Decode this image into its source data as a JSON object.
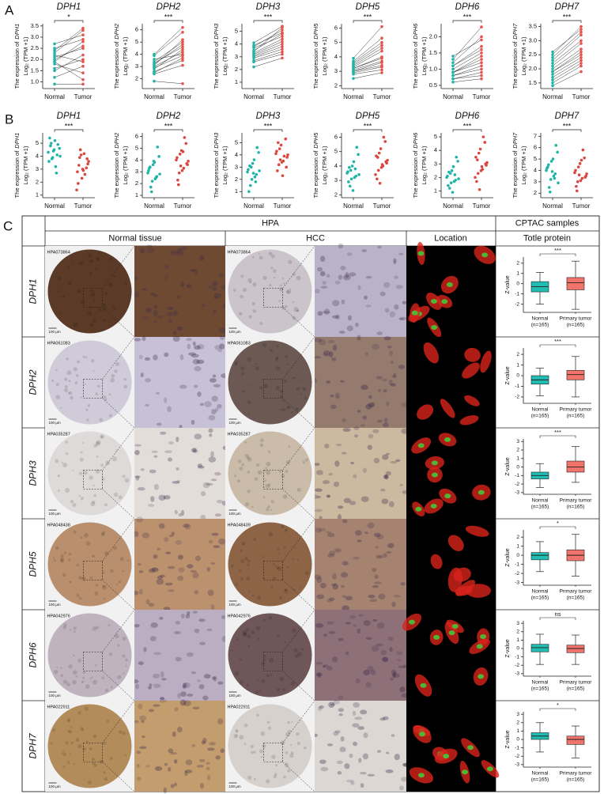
{
  "panel_a": {
    "label": "A",
    "normal_label": "Normal",
    "tumor_label": "Tumor",
    "ylabel_prefix": "The expression of",
    "ylabel_unit": "Log₂ (TPM +1)",
    "colors": {
      "normal": "#1fb5a6",
      "tumor": "#e8524a"
    },
    "plots": [
      {
        "gene": "DPH1",
        "sig": "*",
        "ylim": [
          0.7,
          3.6
        ],
        "yticks": [
          {
            "value": 1,
            "label": "1.0"
          },
          1.5,
          {
            "value": 2,
            "label": "2.0"
          },
          2.5,
          {
            "value": 3,
            "label": "3.0"
          },
          3.5
        ],
        "normal": [
          2.0,
          1.8,
          2.3,
          1.6,
          2.5,
          1.9,
          2.1,
          1.2,
          2.7,
          1.5,
          2.2,
          0.9,
          1.9,
          2.4
        ],
        "tumor": [
          2.6,
          1.4,
          3.3,
          2.0,
          2.9,
          1.1,
          2.5,
          1.7,
          3.1,
          2.2,
          1.9,
          0.9,
          2.8,
          3.4
        ]
      },
      {
        "gene": "DPH2",
        "sig": "***",
        "ylim": [
          1.2,
          6.5
        ],
        "yticks": [
          2,
          3,
          4,
          5,
          6
        ],
        "normal": [
          3.0,
          2.6,
          3.4,
          2.4,
          3.9,
          2.8,
          3.2,
          1.8,
          3.6,
          2.9,
          3.1,
          2.5,
          4.0,
          3.3
        ],
        "tumor": [
          4.2,
          3.5,
          5.0,
          3.1,
          5.8,
          4.4,
          4.8,
          1.6,
          4.0,
          3.9,
          5.2,
          3.7,
          6.2,
          4.6
        ]
      },
      {
        "gene": "DPH3",
        "sig": "***",
        "ylim": [
          0.5,
          5.6
        ],
        "yticks": [
          1,
          2,
          3,
          4,
          5
        ],
        "normal": [
          3.3,
          2.9,
          3.8,
          2.6,
          4.1,
          3.1,
          3.5,
          2.2,
          3.7,
          3.0,
          3.4,
          2.7,
          3.9,
          3.2
        ],
        "tumor": [
          4.4,
          3.6,
          5.1,
          3.2,
          5.4,
          4.0,
          4.8,
          2.9,
          4.6,
          3.8,
          5.3,
          3.4,
          4.9,
          4.2
        ]
      },
      {
        "gene": "DPH5",
        "sig": "***",
        "ylim": [
          1.8,
          6.3
        ],
        "yticks": [
          2,
          3,
          4,
          5,
          6
        ],
        "normal": [
          3.2,
          3.0,
          3.5,
          2.8,
          3.7,
          3.1,
          3.3,
          2.5,
          3.9,
          3.0,
          3.4,
          2.9,
          3.6,
          3.2
        ],
        "tumor": [
          4.0,
          3.4,
          4.8,
          3.1,
          5.3,
          3.7,
          4.4,
          2.9,
          6.1,
          3.6,
          4.6,
          3.3,
          5.0,
          3.9
        ]
      },
      {
        "gene": "DPH6",
        "sig": "***",
        "ylim": [
          0.4,
          2.4
        ],
        "yticks": [
          0.5,
          {
            "value": 1,
            "label": "1.0"
          },
          1.5,
          {
            "value": 2,
            "label": "2.0"
          }
        ],
        "normal": [
          0.9,
          0.8,
          1.1,
          0.7,
          1.3,
          0.9,
          1.0,
          0.6,
          1.4,
          0.8,
          1.1,
          0.7,
          1.2,
          0.9
        ],
        "tumor": [
          1.3,
          1.0,
          1.7,
          0.9,
          2.3,
          1.2,
          1.5,
          0.7,
          1.9,
          1.1,
          1.6,
          0.8,
          2.0,
          1.4
        ]
      },
      {
        "gene": "DPH7",
        "sig": "***",
        "ylim": [
          1.3,
          3.6
        ],
        "yticks": [
          1.5,
          {
            "value": 2,
            "label": "2.0"
          },
          2.5,
          {
            "value": 3,
            "label": "3.0"
          },
          3.5
        ],
        "normal": [
          2.0,
          1.7,
          2.3,
          1.5,
          2.6,
          1.9,
          2.1,
          1.4,
          2.5,
          1.8,
          2.2,
          1.6,
          2.4,
          1.9
        ],
        "tumor": [
          2.7,
          2.3,
          3.2,
          2.1,
          3.4,
          2.5,
          2.9,
          1.9,
          3.5,
          2.4,
          3.0,
          2.2,
          3.3,
          2.6
        ]
      }
    ]
  },
  "panel_b": {
    "label": "B",
    "normal_label": "Normal",
    "tumor_label": "Tumor",
    "ylabel_prefix": "The expression of",
    "ylabel_unit": "Log₂ (TPM +1)",
    "colors": {
      "normal": "#1fb5a6",
      "tumor": "#d9473f"
    },
    "plots": [
      {
        "gene": "DPH1",
        "sig": "***",
        "ylim": [
          0.8,
          5.8
        ],
        "yticks": [
          1,
          2,
          3,
          4,
          5
        ],
        "normal": [
          4.3,
          4.8,
          3.9,
          5.2,
          4.1,
          4.6,
          3.6,
          5.0,
          4.4,
          3.2,
          4.9,
          4.0,
          5.4,
          3.8,
          4.5,
          2.7
        ],
        "tumor": [
          3.4,
          2.8,
          3.9,
          2.3,
          4.2,
          3.1,
          3.6,
          1.9,
          4.5,
          3.0,
          2.6,
          3.8,
          1.4,
          3.3,
          4.1,
          2.9
        ]
      },
      {
        "gene": "DPH2",
        "sig": "***",
        "ylim": [
          0.8,
          6.3
        ],
        "yticks": [
          1,
          2,
          3,
          4,
          5,
          6
        ],
        "normal": [
          2.9,
          3.4,
          2.2,
          3.8,
          2.6,
          4.3,
          3.1,
          1.7,
          3.6,
          2.4,
          5.1,
          2.8,
          3.3,
          1.3,
          3.9,
          2.5
        ],
        "tumor": [
          3.6,
          4.2,
          2.9,
          4.8,
          3.3,
          5.4,
          3.9,
          2.3,
          4.5,
          3.1,
          5.9,
          3.7,
          4.0,
          1.9,
          3.5,
          4.7
        ]
      },
      {
        "gene": "DPH3",
        "sig": "***",
        "ylim": [
          0.5,
          5.8
        ],
        "yticks": [
          1,
          2,
          3,
          4,
          5
        ],
        "normal": [
          2.6,
          3.1,
          2.0,
          3.6,
          2.4,
          4.2,
          2.8,
          1.5,
          3.3,
          2.2,
          4.6,
          2.7,
          1.0,
          3.0,
          2.5,
          1.8
        ],
        "tumor": [
          3.8,
          4.3,
          3.2,
          4.8,
          3.5,
          5.3,
          4.0,
          2.7,
          4.5,
          3.4,
          3.9,
          3.0,
          4.1,
          5.0,
          3.6,
          2.3
        ]
      },
      {
        "gene": "DPH5",
        "sig": "***",
        "ylim": [
          1.8,
          6.3
        ],
        "yticks": [
          2,
          3,
          4,
          5,
          6
        ],
        "normal": [
          3.5,
          3.9,
          3.1,
          4.3,
          3.3,
          4.8,
          3.6,
          2.6,
          4.0,
          3.2,
          5.3,
          3.4,
          2.9,
          3.7,
          2.3,
          3.8
        ],
        "tumor": [
          4.2,
          4.7,
          3.7,
          5.2,
          4.0,
          5.7,
          4.4,
          3.1,
          4.9,
          3.9,
          6.0,
          4.3,
          3.4,
          4.6,
          2.8,
          4.1
        ]
      },
      {
        "gene": "DPH6",
        "sig": "***",
        "ylim": [
          0.5,
          5.3
        ],
        "yticks": [
          1,
          2,
          3,
          4,
          5
        ],
        "normal": [
          2.0,
          2.4,
          1.6,
          2.8,
          1.8,
          3.2,
          2.1,
          1.2,
          2.5,
          1.7,
          3.5,
          1.9,
          1.4,
          2.3,
          0.9,
          2.2
        ],
        "tumor": [
          2.9,
          3.5,
          2.3,
          4.1,
          2.6,
          4.6,
          3.1,
          1.7,
          3.8,
          2.5,
          5.0,
          3.0,
          2.0,
          3.3,
          1.1,
          2.8
        ]
      },
      {
        "gene": "DPH7",
        "sig": "***",
        "ylim": [
          1.6,
          7.3
        ],
        "yticks": [
          2,
          3,
          4,
          5,
          6,
          7
        ],
        "normal": [
          4.0,
          4.5,
          3.2,
          5.0,
          3.7,
          5.6,
          4.2,
          2.5,
          4.8,
          3.5,
          6.2,
          2.9,
          4.3,
          2.1,
          3.9,
          3.3
        ],
        "tumor": [
          3.5,
          4.0,
          3.0,
          4.6,
          3.3,
          5.1,
          3.7,
          2.6,
          4.3,
          3.1,
          5.8,
          3.4,
          3.8,
          2.2,
          3.6,
          4.9
        ]
      }
    ]
  },
  "panel_c": {
    "label": "C",
    "header": {
      "hpa": "HPA",
      "cptac": "CPTAC samples",
      "normal_tissue": "Normal tissue",
      "hcc": "HCC",
      "location": "Location",
      "total_protein": "Totle protein"
    },
    "scale_bar": "100 µm",
    "box_ylabel": "Z-value",
    "box_xlabels": {
      "normal": [
        "Normal",
        "(n=165)"
      ],
      "tumor": [
        "Primary tumor",
        "(n=165)"
      ]
    },
    "colors": {
      "normal": "#22bdb2",
      "tumor": "#f0736c"
    },
    "rows": [
      {
        "gene": "DPH1",
        "normal_id": "HPA073864",
        "hcc_id": "HPA073864",
        "sig": "***",
        "ylim": [
          -2.8,
          2.6
        ],
        "yticks": [
          -2,
          -1,
          0,
          1,
          2
        ],
        "normal_box": [
          -2.0,
          -0.8,
          -0.3,
          0.2,
          1.1
        ],
        "tumor_box": [
          -2.5,
          -0.6,
          0.1,
          0.6,
          2.2
        ]
      },
      {
        "gene": "DPH2",
        "normal_id": "HPA061083",
        "hcc_id": "HPA061083",
        "sig": "***",
        "ylim": [
          -2.6,
          2.6
        ],
        "yticks": [
          -2,
          -1,
          0,
          1,
          2
        ],
        "normal_box": [
          -1.9,
          -0.8,
          -0.4,
          0.0,
          0.7
        ],
        "tumor_box": [
          -2.0,
          -0.4,
          0.1,
          0.5,
          1.8
        ]
      },
      {
        "gene": "DPH3",
        "normal_id": "HPA035287",
        "hcc_id": "HPA035287",
        "sig": "***",
        "ylim": [
          -3.2,
          3.3
        ],
        "yticks": [
          -3,
          -2,
          -1,
          0,
          1,
          2,
          3
        ],
        "normal_box": [
          -2.4,
          -1.4,
          -1.0,
          -0.6,
          0.4
        ],
        "tumor_box": [
          -1.8,
          -0.6,
          0.0,
          0.7,
          2.4
        ]
      },
      {
        "gene": "DPH5",
        "normal_id": "HPA048438",
        "hcc_id": "HPA048439",
        "sig": "*",
        "ylim": [
          -3.3,
          2.8
        ],
        "yticks": [
          -3,
          -2,
          -1,
          0,
          1,
          2
        ],
        "normal_box": [
          -1.8,
          -0.5,
          0.0,
          0.3,
          1.5
        ],
        "tumor_box": [
          -2.3,
          -0.6,
          0.0,
          0.6,
          2.3
        ]
      },
      {
        "gene": "DPH6",
        "normal_id": "HPA042976",
        "hcc_id": "HPA042976",
        "sig": "ns",
        "ylim": [
          -3.3,
          3.3
        ],
        "yticks": [
          -3,
          -2,
          -1,
          0,
          1,
          2,
          3
        ],
        "normal_box": [
          -1.9,
          -0.4,
          0.1,
          0.5,
          1.7
        ],
        "tumor_box": [
          -1.9,
          -0.5,
          0.0,
          0.4,
          1.6
        ]
      },
      {
        "gene": "DPH7",
        "normal_id": "HPA022911",
        "hcc_id": "HPA022911",
        "sig": "*",
        "ylim": [
          -3.3,
          3.3
        ],
        "yticks": [
          -3,
          -2,
          -1,
          0,
          1,
          2,
          3
        ],
        "normal_box": [
          -1.5,
          0.0,
          0.4,
          0.8,
          2.0
        ],
        "tumor_box": [
          -2.2,
          -0.6,
          0.0,
          0.4,
          1.6
        ]
      }
    ]
  }
}
